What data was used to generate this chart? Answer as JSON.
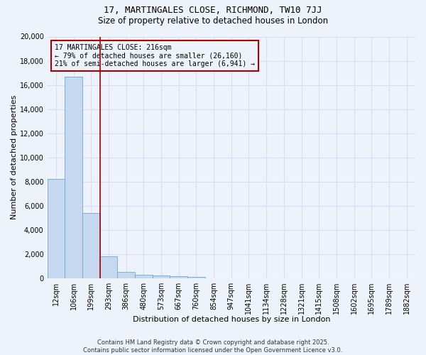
{
  "title1": "17, MARTINGALES CLOSE, RICHMOND, TW10 7JJ",
  "title2": "Size of property relative to detached houses in London",
  "xlabel": "Distribution of detached houses by size in London",
  "ylabel": "Number of detached properties",
  "bar_labels": [
    "12sqm",
    "106sqm",
    "199sqm",
    "293sqm",
    "386sqm",
    "480sqm",
    "573sqm",
    "667sqm",
    "760sqm",
    "854sqm",
    "947sqm",
    "1041sqm",
    "1134sqm",
    "1228sqm",
    "1321sqm",
    "1415sqm",
    "1508sqm",
    "1602sqm",
    "1695sqm",
    "1789sqm",
    "1882sqm"
  ],
  "bar_values": [
    8200,
    16700,
    5400,
    1800,
    500,
    300,
    200,
    150,
    120,
    0,
    0,
    0,
    0,
    0,
    0,
    0,
    0,
    0,
    0,
    0,
    0
  ],
  "bar_color": "#c5d8f0",
  "bar_edge_color": "#6aaad4",
  "ylim": [
    0,
    20000
  ],
  "yticks": [
    0,
    2000,
    4000,
    6000,
    8000,
    10000,
    12000,
    14000,
    16000,
    18000,
    20000
  ],
  "red_line_x": 2.5,
  "annotation_text": "17 MARTINGALES CLOSE: 216sqm\n← 79% of detached houses are smaller (26,160)\n21% of semi-detached houses are larger (6,941) →",
  "annotation_box_color": "#aa0000",
  "footer1": "Contains HM Land Registry data © Crown copyright and database right 2025.",
  "footer2": "Contains public sector information licensed under the Open Government Licence v3.0.",
  "bg_color": "#eef2fb",
  "grid_color": "#d8dff0",
  "title1_fontsize": 9,
  "title2_fontsize": 8.5,
  "xlabel_fontsize": 8,
  "ylabel_fontsize": 8,
  "annot_fontsize": 7,
  "footer_fontsize": 6,
  "tick_fontsize": 7
}
